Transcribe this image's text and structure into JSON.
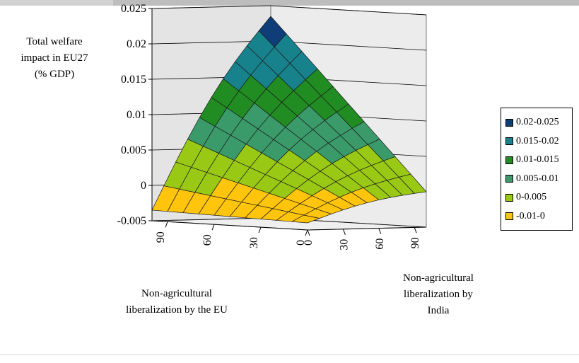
{
  "chart_data": {
    "type": "surface",
    "zlabel": "Total welfare\nimpact in EU27\n(% GDP)",
    "xlabel": "Non-agricultural\nliberalization by the EU",
    "ylabel": "Non-agricultural\nliberalization by\nIndia",
    "zlim": [
      -0.005,
      0.025
    ],
    "zticks": [
      "0.025",
      "0.02",
      "0.015",
      "0.01",
      "0.005",
      "0",
      "-0.005"
    ],
    "xticks": [
      "90",
      "60",
      "30",
      "0"
    ],
    "yticks": [
      "0",
      "30",
      "60",
      "90"
    ],
    "x_range": [
      0,
      100
    ],
    "y_range": [
      0,
      100
    ],
    "grid_steps": 10,
    "corner_values": {
      "eu0_india0": -0.004,
      "eu100_india0": -0.0035,
      "eu0_india100": 0.0,
      "eu100_india100": 0.0235
    },
    "legend": [
      {
        "label": "0.02-0.025",
        "color": "#0e3d78",
        "min": 0.02,
        "max": 0.025
      },
      {
        "label": "0.015-0.02",
        "color": "#17828c",
        "min": 0.015,
        "max": 0.02
      },
      {
        "label": "0.01-0.015",
        "color": "#218c21",
        "min": 0.01,
        "max": 0.015
      },
      {
        "label": "0.005-0.01",
        "color": "#3a9a6a",
        "min": 0.005,
        "max": 0.01
      },
      {
        "label": "0-0.005",
        "color": "#99c914",
        "min": 0.0,
        "max": 0.005
      },
      {
        "label": "-0.01-0",
        "color": "#ffc40c",
        "min": -0.01,
        "max": 0.0
      }
    ],
    "legend_position": "right"
  },
  "page": {
    "zlabel_lines": [
      "Total welfare",
      "impact in EU27",
      "(% GDP)"
    ],
    "xlabel_lines": [
      "Non-agricultural",
      "liberalization by the EU"
    ],
    "ylabel_lines": [
      "Non-agricultural",
      "liberalization by",
      "India"
    ]
  }
}
